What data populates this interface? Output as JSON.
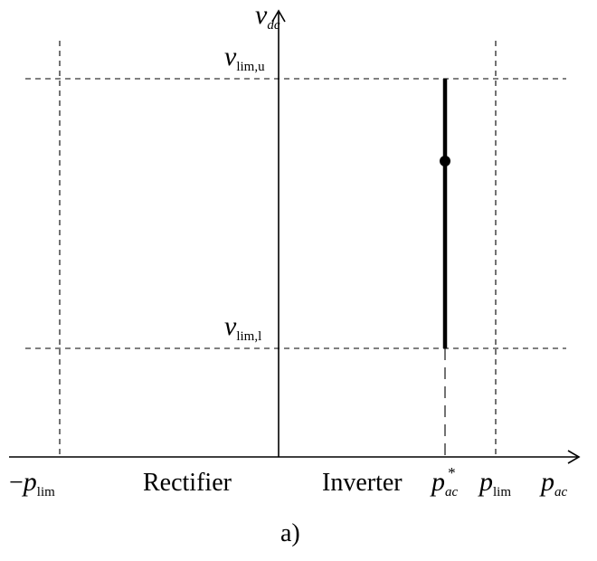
{
  "axes": {
    "y_label_main": "v",
    "y_label_sub": "dc",
    "x_label_main": "p",
    "x_label_sub": "ac"
  },
  "levels": {
    "upper_main": "v",
    "upper_sub": "lim,u",
    "lower_main": "v",
    "lower_sub": "lim,l"
  },
  "x_ticks": {
    "neg_lim_prefix": "−",
    "neg_lim_main": "p",
    "neg_lim_sub": "lim",
    "pos_lim_main": "p",
    "pos_lim_sub": "lim",
    "ref_main": "p",
    "ref_sub": "ac",
    "ref_sup": "*"
  },
  "regions": {
    "left": "Rectifier",
    "right": "Inverter"
  },
  "caption": "a)"
}
